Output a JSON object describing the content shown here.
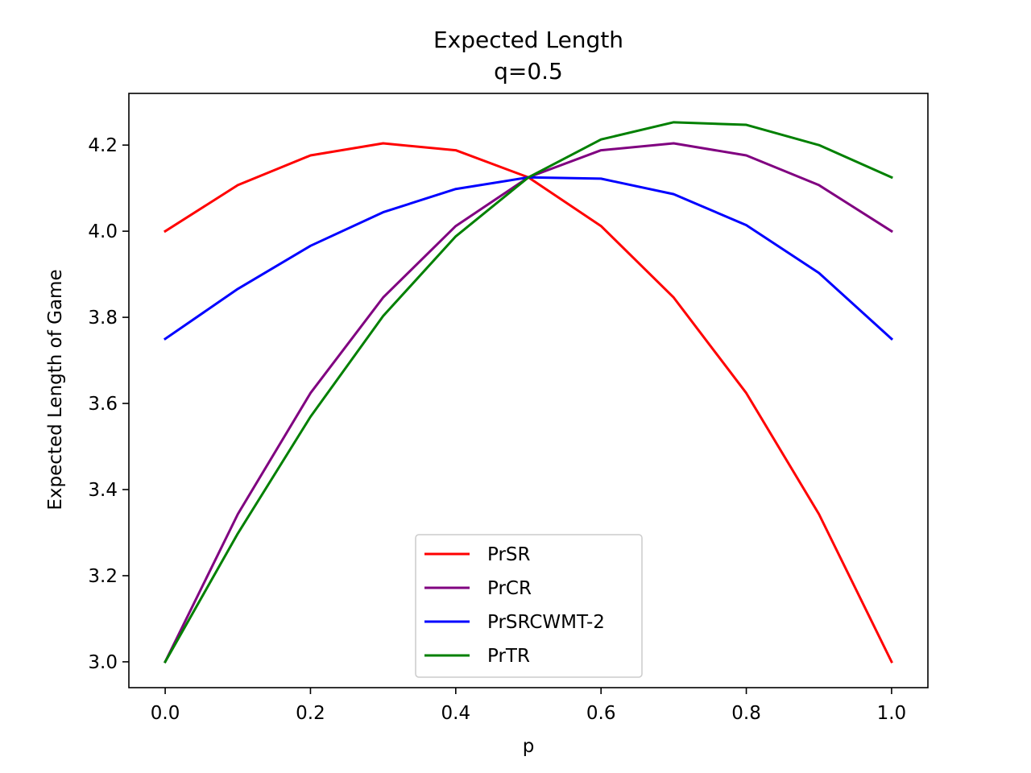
{
  "chart_data": {
    "type": "line",
    "title": "Expected Length",
    "subtitle": "q=0.5",
    "xlabel": "p",
    "ylabel": "Expected Length of Game",
    "xlim": [
      -0.05,
      1.05
    ],
    "ylim": [
      2.94,
      4.32
    ],
    "xticks": [
      0.0,
      0.2,
      0.4,
      0.6,
      0.8,
      1.0
    ],
    "xtick_labels": [
      "0.0",
      "0.2",
      "0.4",
      "0.6",
      "0.8",
      "1.0"
    ],
    "yticks": [
      3.0,
      3.2,
      3.4,
      3.6,
      3.8,
      4.0,
      4.2
    ],
    "ytick_labels": [
      "3.0",
      "3.2",
      "3.4",
      "3.6",
      "3.8",
      "4.0",
      "4.2"
    ],
    "grid": false,
    "legend_position": "bottom-center",
    "x": [
      0.0,
      0.1,
      0.2,
      0.3,
      0.4,
      0.5,
      0.6,
      0.7,
      0.8,
      0.9,
      1.0
    ],
    "series": [
      {
        "name": "PrSR",
        "color": "#ff0000",
        "values": [
          4.0,
          4.107,
          4.176,
          4.204,
          4.188,
          4.125,
          4.012,
          3.846,
          3.624,
          3.343,
          3.0
        ]
      },
      {
        "name": "PrCR",
        "color": "#800080",
        "values": [
          3.0,
          3.343,
          3.624,
          3.846,
          4.012,
          4.125,
          4.188,
          4.204,
          4.176,
          4.107,
          4.0
        ]
      },
      {
        "name": "PrSRCWMT-2",
        "color": "#0000ff",
        "values": [
          3.75,
          3.866,
          3.966,
          4.044,
          4.098,
          4.125,
          4.122,
          4.086,
          4.014,
          3.903,
          3.75
        ]
      },
      {
        "name": "PrTR",
        "color": "#008000",
        "values": [
          3.0,
          3.298,
          3.569,
          3.803,
          3.988,
          4.125,
          4.213,
          4.253,
          4.247,
          4.2,
          4.125
        ]
      }
    ]
  }
}
